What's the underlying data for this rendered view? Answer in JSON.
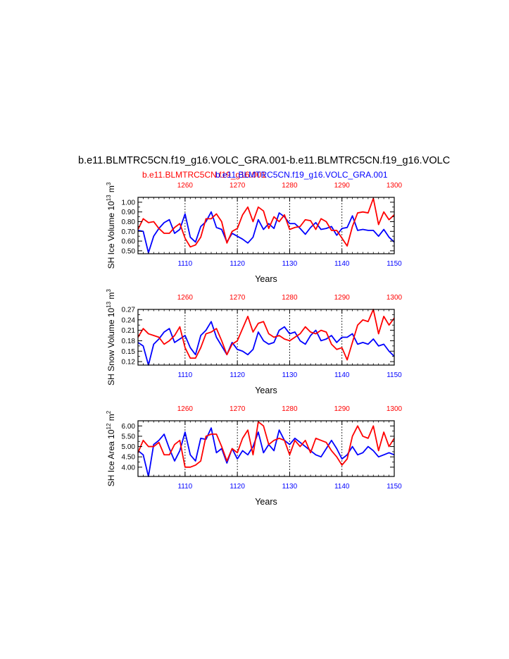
{
  "figure": {
    "main_title": "b.e11.BLMTRC5CN.f19_g16.VOLC_GRA.001-b.e11.BLMTRC5CN.f19_g16.VOLC",
    "legend_red": "b.e11.BLMTRC5CN.f19_g16.001",
    "legend_blue": "b.e11.BLMTRC5CN.f19_g16.VOLC_GRA.001",
    "colors": {
      "red": "#ff0000",
      "blue": "#0000ff",
      "axis": "#000000"
    }
  },
  "chart_data": [
    {
      "type": "line",
      "ylabel": "SH Ice Volume 10",
      "ylabel_exp": "13",
      "ylabel_unit": " m",
      "ylabel_unit_exp": "3",
      "xlabel": "Years",
      "xlim_bottom": [
        1101,
        1150
      ],
      "xlim_top": [
        1251,
        1300
      ],
      "ylim": [
        0.47,
        1.05
      ],
      "yticks": [
        "0.50",
        "0.60",
        "0.70",
        "0.80",
        "0.90",
        "1.00"
      ],
      "bottom_ticks": [
        "1110",
        "1120",
        "1130",
        "1140",
        "1150"
      ],
      "top_ticks": [
        "1260",
        "1270",
        "1280",
        "1290",
        "1300"
      ],
      "series": [
        {
          "name": "b.e11.BLMTRC5CN.f19_g16.VOLC_GRA.001",
          "color": "#0000ff",
          "x_start": 1101,
          "values": [
            0.71,
            0.7,
            0.48,
            0.65,
            0.73,
            0.79,
            0.82,
            0.68,
            0.72,
            0.88,
            0.64,
            0.59,
            0.75,
            0.8,
            0.9,
            0.74,
            0.72,
            0.59,
            0.68,
            0.65,
            0.62,
            0.58,
            0.64,
            0.82,
            0.72,
            0.78,
            0.73,
            0.89,
            0.85,
            0.78,
            0.78,
            0.73,
            0.67,
            0.74,
            0.79,
            0.72,
            0.73,
            0.75,
            0.66,
            0.73,
            0.74,
            0.86,
            0.71,
            0.72,
            0.71,
            0.71,
            0.65,
            0.72,
            0.64,
            0.59
          ]
        },
        {
          "name": "b.e11.BLMTRC5CN.f19_g16.001",
          "color": "#ff0000",
          "x_start": 1101,
          "values": [
            0.72,
            0.83,
            0.79,
            0.8,
            0.73,
            0.68,
            0.68,
            0.74,
            0.78,
            0.63,
            0.54,
            0.56,
            0.64,
            0.83,
            0.83,
            0.88,
            0.8,
            0.58,
            0.7,
            0.73,
            0.87,
            0.95,
            0.8,
            0.95,
            0.91,
            0.73,
            0.85,
            0.8,
            0.87,
            0.72,
            0.74,
            0.75,
            0.82,
            0.81,
            0.72,
            0.83,
            0.8,
            0.71,
            0.71,
            0.63,
            0.55,
            0.75,
            0.89,
            0.9,
            0.89,
            1.04,
            0.77,
            0.9,
            0.82,
            0.87
          ]
        }
      ]
    },
    {
      "type": "line",
      "ylabel": "SH Snow Volume 10",
      "ylabel_exp": "13",
      "ylabel_unit": " m",
      "ylabel_unit_exp": "3",
      "xlabel": "Years",
      "xlim_bottom": [
        1101,
        1150
      ],
      "xlim_top": [
        1251,
        1300
      ],
      "ylim": [
        0.11,
        0.27
      ],
      "yticks": [
        "0.12",
        "0.15",
        "0.18",
        "0.21",
        "0.24",
        "0.27"
      ],
      "bottom_ticks": [
        "1110",
        "1120",
        "1130",
        "1140",
        "1150"
      ],
      "top_ticks": [
        "1260",
        "1270",
        "1280",
        "1290",
        "1300"
      ],
      "series": [
        {
          "name": "b.e11.BLMTRC5CN.f19_g16.VOLC_GRA.001",
          "color": "#0000ff",
          "x_start": 1101,
          "values": [
            0.175,
            0.165,
            0.11,
            0.17,
            0.185,
            0.205,
            0.215,
            0.175,
            0.185,
            0.195,
            0.16,
            0.14,
            0.195,
            0.21,
            0.235,
            0.19,
            0.165,
            0.14,
            0.175,
            0.155,
            0.15,
            0.14,
            0.155,
            0.205,
            0.18,
            0.17,
            0.175,
            0.21,
            0.22,
            0.2,
            0.205,
            0.18,
            0.17,
            0.195,
            0.21,
            0.18,
            0.185,
            0.195,
            0.175,
            0.19,
            0.19,
            0.2,
            0.17,
            0.175,
            0.17,
            0.185,
            0.165,
            0.17,
            0.15,
            0.135
          ]
        },
        {
          "name": "b.e11.BLMTRC5CN.f19_g16.001",
          "color": "#ff0000",
          "x_start": 1101,
          "values": [
            0.19,
            0.215,
            0.2,
            0.195,
            0.19,
            0.17,
            0.18,
            0.195,
            0.22,
            0.16,
            0.13,
            0.13,
            0.16,
            0.2,
            0.205,
            0.215,
            0.18,
            0.14,
            0.17,
            0.18,
            0.215,
            0.25,
            0.205,
            0.23,
            0.235,
            0.2,
            0.19,
            0.195,
            0.185,
            0.18,
            0.19,
            0.2,
            0.22,
            0.205,
            0.2,
            0.21,
            0.205,
            0.17,
            0.155,
            0.16,
            0.125,
            0.175,
            0.225,
            0.24,
            0.235,
            0.27,
            0.2,
            0.25,
            0.225,
            0.245
          ]
        }
      ]
    },
    {
      "type": "line",
      "ylabel": "SH Ice Area 10",
      "ylabel_exp": "12",
      "ylabel_unit": " m",
      "ylabel_unit_exp": "2",
      "xlabel": "Years",
      "xlim_bottom": [
        1101,
        1150
      ],
      "xlim_top": [
        1251,
        1300
      ],
      "ylim": [
        3.55,
        6.25
      ],
      "yticks": [
        "4.00",
        "4.50",
        "5.00",
        "5.50",
        "6.00"
      ],
      "bottom_ticks": [
        "1110",
        "1120",
        "1130",
        "1140",
        "1150"
      ],
      "top_ticks": [
        "1260",
        "1270",
        "1280",
        "1290",
        "1300"
      ],
      "series": [
        {
          "name": "b.e11.BLMTRC5CN.f19_g16.VOLC_GRA.001",
          "color": "#0000ff",
          "x_start": 1101,
          "values": [
            4.8,
            4.6,
            3.55,
            5.1,
            5.3,
            5.6,
            4.9,
            4.3,
            4.8,
            5.7,
            4.6,
            4.3,
            5.4,
            5.35,
            5.9,
            4.7,
            4.9,
            4.2,
            4.9,
            4.4,
            4.8,
            4.6,
            5.0,
            5.7,
            4.7,
            5.1,
            4.8,
            5.8,
            5.3,
            5.1,
            5.4,
            5.2,
            5.0,
            4.8,
            4.6,
            4.5,
            4.9,
            5.3,
            4.9,
            4.4,
            4.6,
            5.0,
            4.6,
            4.7,
            5.0,
            4.8,
            4.5,
            4.6,
            4.7,
            4.6
          ]
        },
        {
          "name": "b.e11.BLMTRC5CN.f19_g16.001",
          "color": "#ff0000",
          "x_start": 1101,
          "values": [
            4.7,
            5.3,
            5.0,
            5.0,
            5.2,
            4.6,
            4.6,
            5.1,
            5.3,
            4.0,
            4.0,
            4.1,
            4.3,
            5.5,
            5.6,
            5.6,
            5.0,
            4.3,
            4.9,
            4.7,
            5.4,
            5.8,
            4.6,
            6.2,
            6.0,
            5.1,
            5.3,
            5.4,
            5.3,
            4.6,
            5.3,
            5.0,
            5.3,
            4.7,
            5.4,
            5.3,
            5.2,
            4.8,
            4.5,
            4.1,
            4.4,
            5.5,
            6.0,
            5.5,
            5.4,
            6.0,
            4.8,
            5.7,
            5.0,
            5.4
          ]
        }
      ]
    }
  ]
}
